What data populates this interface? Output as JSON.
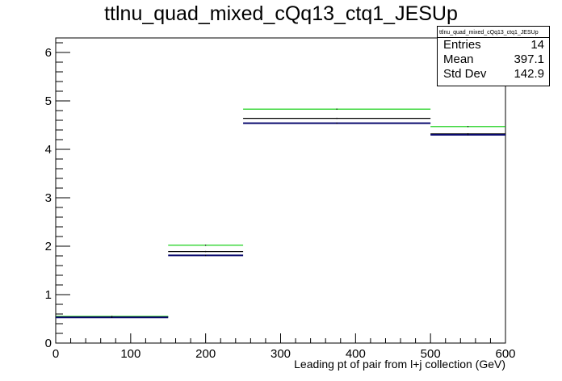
{
  "chart_data": {
    "type": "line",
    "title": "ttlnu_quad_mixed_cQq13_ctq1_JESUp",
    "xlabel": "Leading pt of pair from l+j collection (GeV)",
    "ylabel": "",
    "xlim": [
      0,
      600
    ],
    "ylim": [
      0,
      6.3
    ],
    "x_ticks": [
      "0",
      "100",
      "200",
      "300",
      "400",
      "500",
      "600"
    ],
    "y_ticks": [
      "0",
      "1",
      "2",
      "3",
      "4",
      "5",
      "6"
    ],
    "bin_edges": [
      0,
      150,
      250,
      500,
      600
    ],
    "series": [
      {
        "color": "#00cc00",
        "values": [
          0.55,
          2.02,
          4.83,
          4.47
        ]
      },
      {
        "color": "#000000",
        "values": [
          0.54,
          1.89,
          4.64,
          4.32
        ]
      },
      {
        "color": "#0a0a6e",
        "values": [
          0.53,
          1.81,
          4.54,
          4.3
        ]
      }
    ],
    "stats": {
      "name": "ttlnu_quad_mixed_cQq13_ctq1_JESUp",
      "entries_label": "Entries",
      "entries": "14",
      "mean_label": "Mean",
      "mean": "397.1",
      "std_label": "Std Dev",
      "std": "142.9"
    }
  }
}
